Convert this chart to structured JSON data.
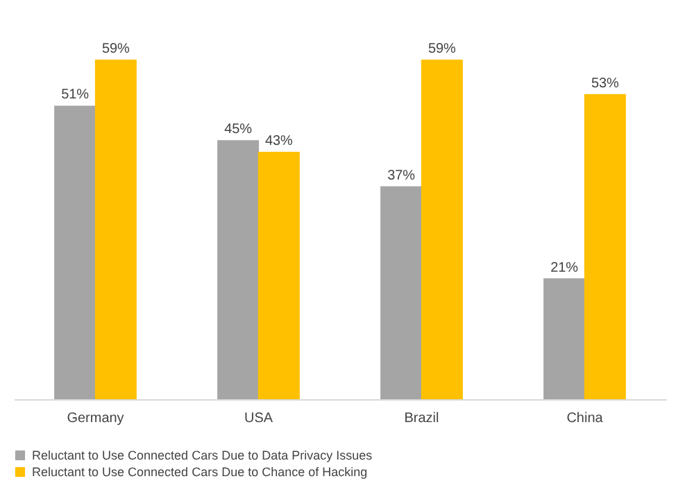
{
  "chart_data": {
    "type": "bar",
    "categories": [
      "Germany",
      "USA",
      "Brazil",
      "China"
    ],
    "series": [
      {
        "name": "Reluctant to Use Connected Cars Due to Data Privacy Issues",
        "color": "#a5a5a5",
        "values": [
          51,
          45,
          37,
          21
        ],
        "value_labels": [
          "51%",
          "45%",
          "37%",
          "21%"
        ]
      },
      {
        "name": "Reluctant to Use Connected Cars Due to Chance of Hacking",
        "color": "#ffc000",
        "values": [
          59,
          43,
          59,
          53
        ],
        "value_labels": [
          "59%",
          "43%",
          "59%",
          "53%"
        ]
      }
    ],
    "tick_labels": "x",
    "grid": false,
    "legend": "bottom"
  }
}
